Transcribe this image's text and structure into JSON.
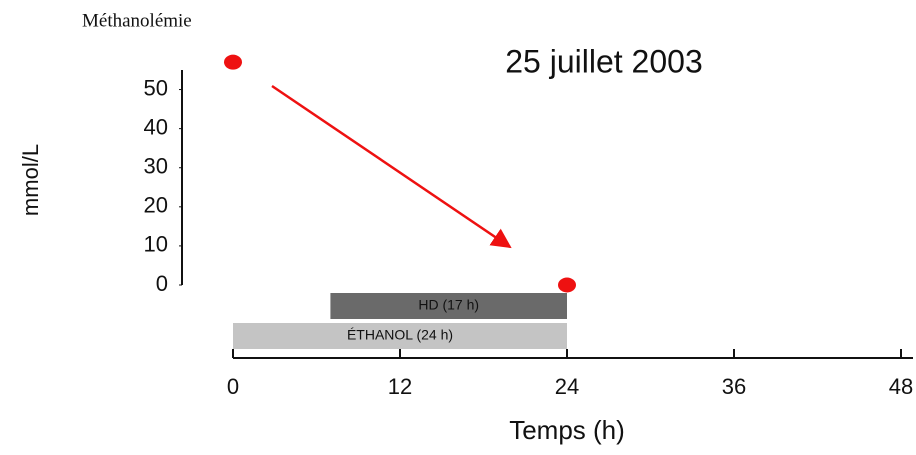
{
  "chart_data": {
    "type": "scatter",
    "title": "Méthanolémie",
    "subtitle": "25 juillet 2003",
    "y_label": "mmol/L",
    "x_label": "Temps (h)",
    "series": [
      {
        "name": "Méthanolémie",
        "color": "#ee1111",
        "x": [
          0,
          24
        ],
        "values": [
          57,
          0
        ]
      }
    ],
    "xlim": [
      0,
      48
    ],
    "xticks": [
      0,
      12,
      24,
      36,
      48
    ],
    "ylim": [
      0,
      55
    ],
    "yticks": [
      0,
      10,
      20,
      30,
      40,
      50
    ],
    "bars": [
      {
        "label": "HD (17 h)",
        "start": 7,
        "end": 24,
        "color": "#6a6a6a"
      },
      {
        "label": "ÉTHANOL (24 h)",
        "start": 0,
        "end": 24,
        "color": "#c4c4c4"
      }
    ]
  }
}
